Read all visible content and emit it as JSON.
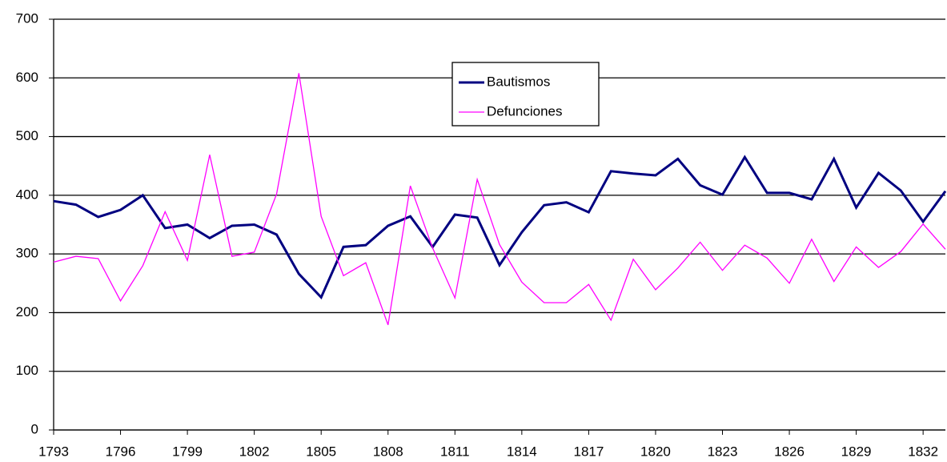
{
  "chart_data": {
    "type": "line",
    "x": [
      1793,
      1794,
      1795,
      1796,
      1797,
      1798,
      1799,
      1800,
      1801,
      1802,
      1803,
      1804,
      1805,
      1806,
      1807,
      1808,
      1809,
      1810,
      1811,
      1812,
      1813,
      1814,
      1815,
      1816,
      1817,
      1818,
      1819,
      1820,
      1821,
      1822,
      1823,
      1824,
      1825,
      1826,
      1827,
      1828,
      1829,
      1830,
      1831,
      1832,
      1833
    ],
    "series": [
      {
        "name": "Bautismos",
        "color": "#000080",
        "values": [
          390,
          384,
          363,
          375,
          400,
          344,
          350,
          327,
          348,
          350,
          333,
          266,
          226,
          312,
          315,
          348,
          364,
          312,
          367,
          362,
          281,
          337,
          383,
          388,
          371,
          441,
          437,
          434,
          462,
          417,
          401,
          465,
          404,
          404,
          393,
          462,
          379,
          438,
          408,
          355,
          407
        ]
      },
      {
        "name": "Defunciones",
        "color": "#ff00ff",
        "values": [
          286,
          296,
          292,
          220,
          280,
          372,
          289,
          469,
          296,
          303,
          402,
          608,
          364,
          263,
          285,
          179,
          416,
          310,
          225,
          427,
          316,
          252,
          217,
          217,
          248,
          187,
          291,
          239,
          276,
          320,
          272,
          315,
          293,
          250,
          325,
          253,
          312,
          277,
          304,
          351,
          308
        ]
      }
    ],
    "xlim": [
      1793,
      1833
    ],
    "xticks": [
      1793,
      1796,
      1799,
      1802,
      1805,
      1808,
      1811,
      1814,
      1817,
      1820,
      1823,
      1826,
      1829,
      1832
    ],
    "ylim": [
      0,
      700
    ],
    "yticks": [
      0,
      100,
      200,
      300,
      400,
      500,
      600,
      700
    ],
    "grid": true,
    "legend": "top"
  }
}
